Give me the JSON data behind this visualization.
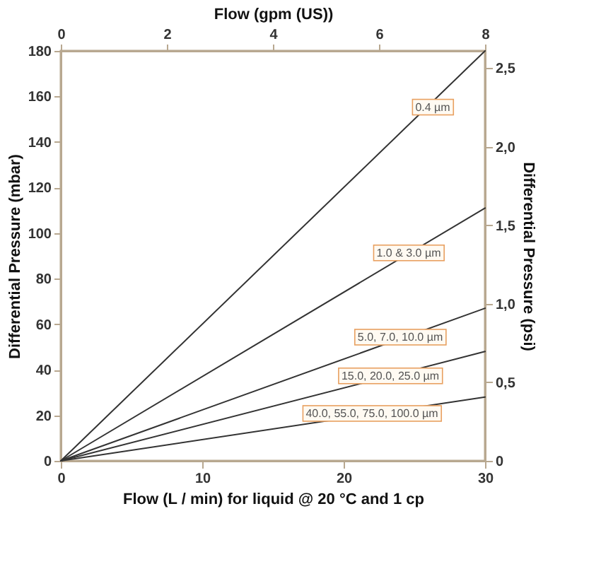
{
  "chart_data": {
    "type": "line",
    "xlabel": "Flow (L / min) for liquid @ 20 °C and 1 cp",
    "ylabel": "Differential Pressure (mbar)",
    "y2label": "Differential Pressure (psi)",
    "x2label": "Flow (gpm (US))",
    "x": [
      0,
      30
    ],
    "series": [
      {
        "color": "#333333",
        "values": [
          0,
          180
        ]
      },
      {
        "color": "#333333",
        "values": [
          0,
          111
        ]
      },
      {
        "color": "#333333",
        "values": [
          0,
          67
        ]
      },
      {
        "color": "#333333",
        "values": [
          0,
          48
        ]
      },
      {
        "color": "#333333",
        "values": [
          0,
          28
        ]
      }
    ],
    "xlim": [
      0,
      30
    ],
    "xticks": [
      0,
      10,
      20,
      30
    ],
    "ylim": [
      0,
      180
    ],
    "yticks": [
      0,
      20,
      40,
      60,
      80,
      100,
      120,
      140,
      160,
      180
    ],
    "y2lim": [
      0,
      2.61
    ],
    "y2ticks": [
      {
        "value": 0,
        "label": "0"
      },
      {
        "value": 0.5,
        "label": "0,5"
      },
      {
        "value": 1,
        "label": "1,0"
      },
      {
        "value": 1.5,
        "label": "1,5"
      },
      {
        "value": 2,
        "label": "2,0"
      },
      {
        "value": 2.5,
        "label": "2,5"
      }
    ],
    "x2lim": [
      0,
      8
    ],
    "x2ticks": [
      0,
      2,
      4,
      6,
      8
    ],
    "grid": false,
    "legend": false,
    "marker": "none",
    "line_style": "solid",
    "annotations": [
      {
        "text": "0.4 µm",
        "x": 26.3,
        "y": 155
      },
      {
        "text": "1.0 & 3.0 µm",
        "x": 24.6,
        "y": 91
      },
      {
        "text": "5.0, 7.0, 10.0 µm",
        "x": 24,
        "y": 54
      },
      {
        "text": "15.0, 20.0, 25.0 µm",
        "x": 23.3,
        "y": 37
      },
      {
        "text": "40.0, 55.0, 75.0, 100.0 µm",
        "x": 22,
        "y": 20.5
      }
    ]
  }
}
